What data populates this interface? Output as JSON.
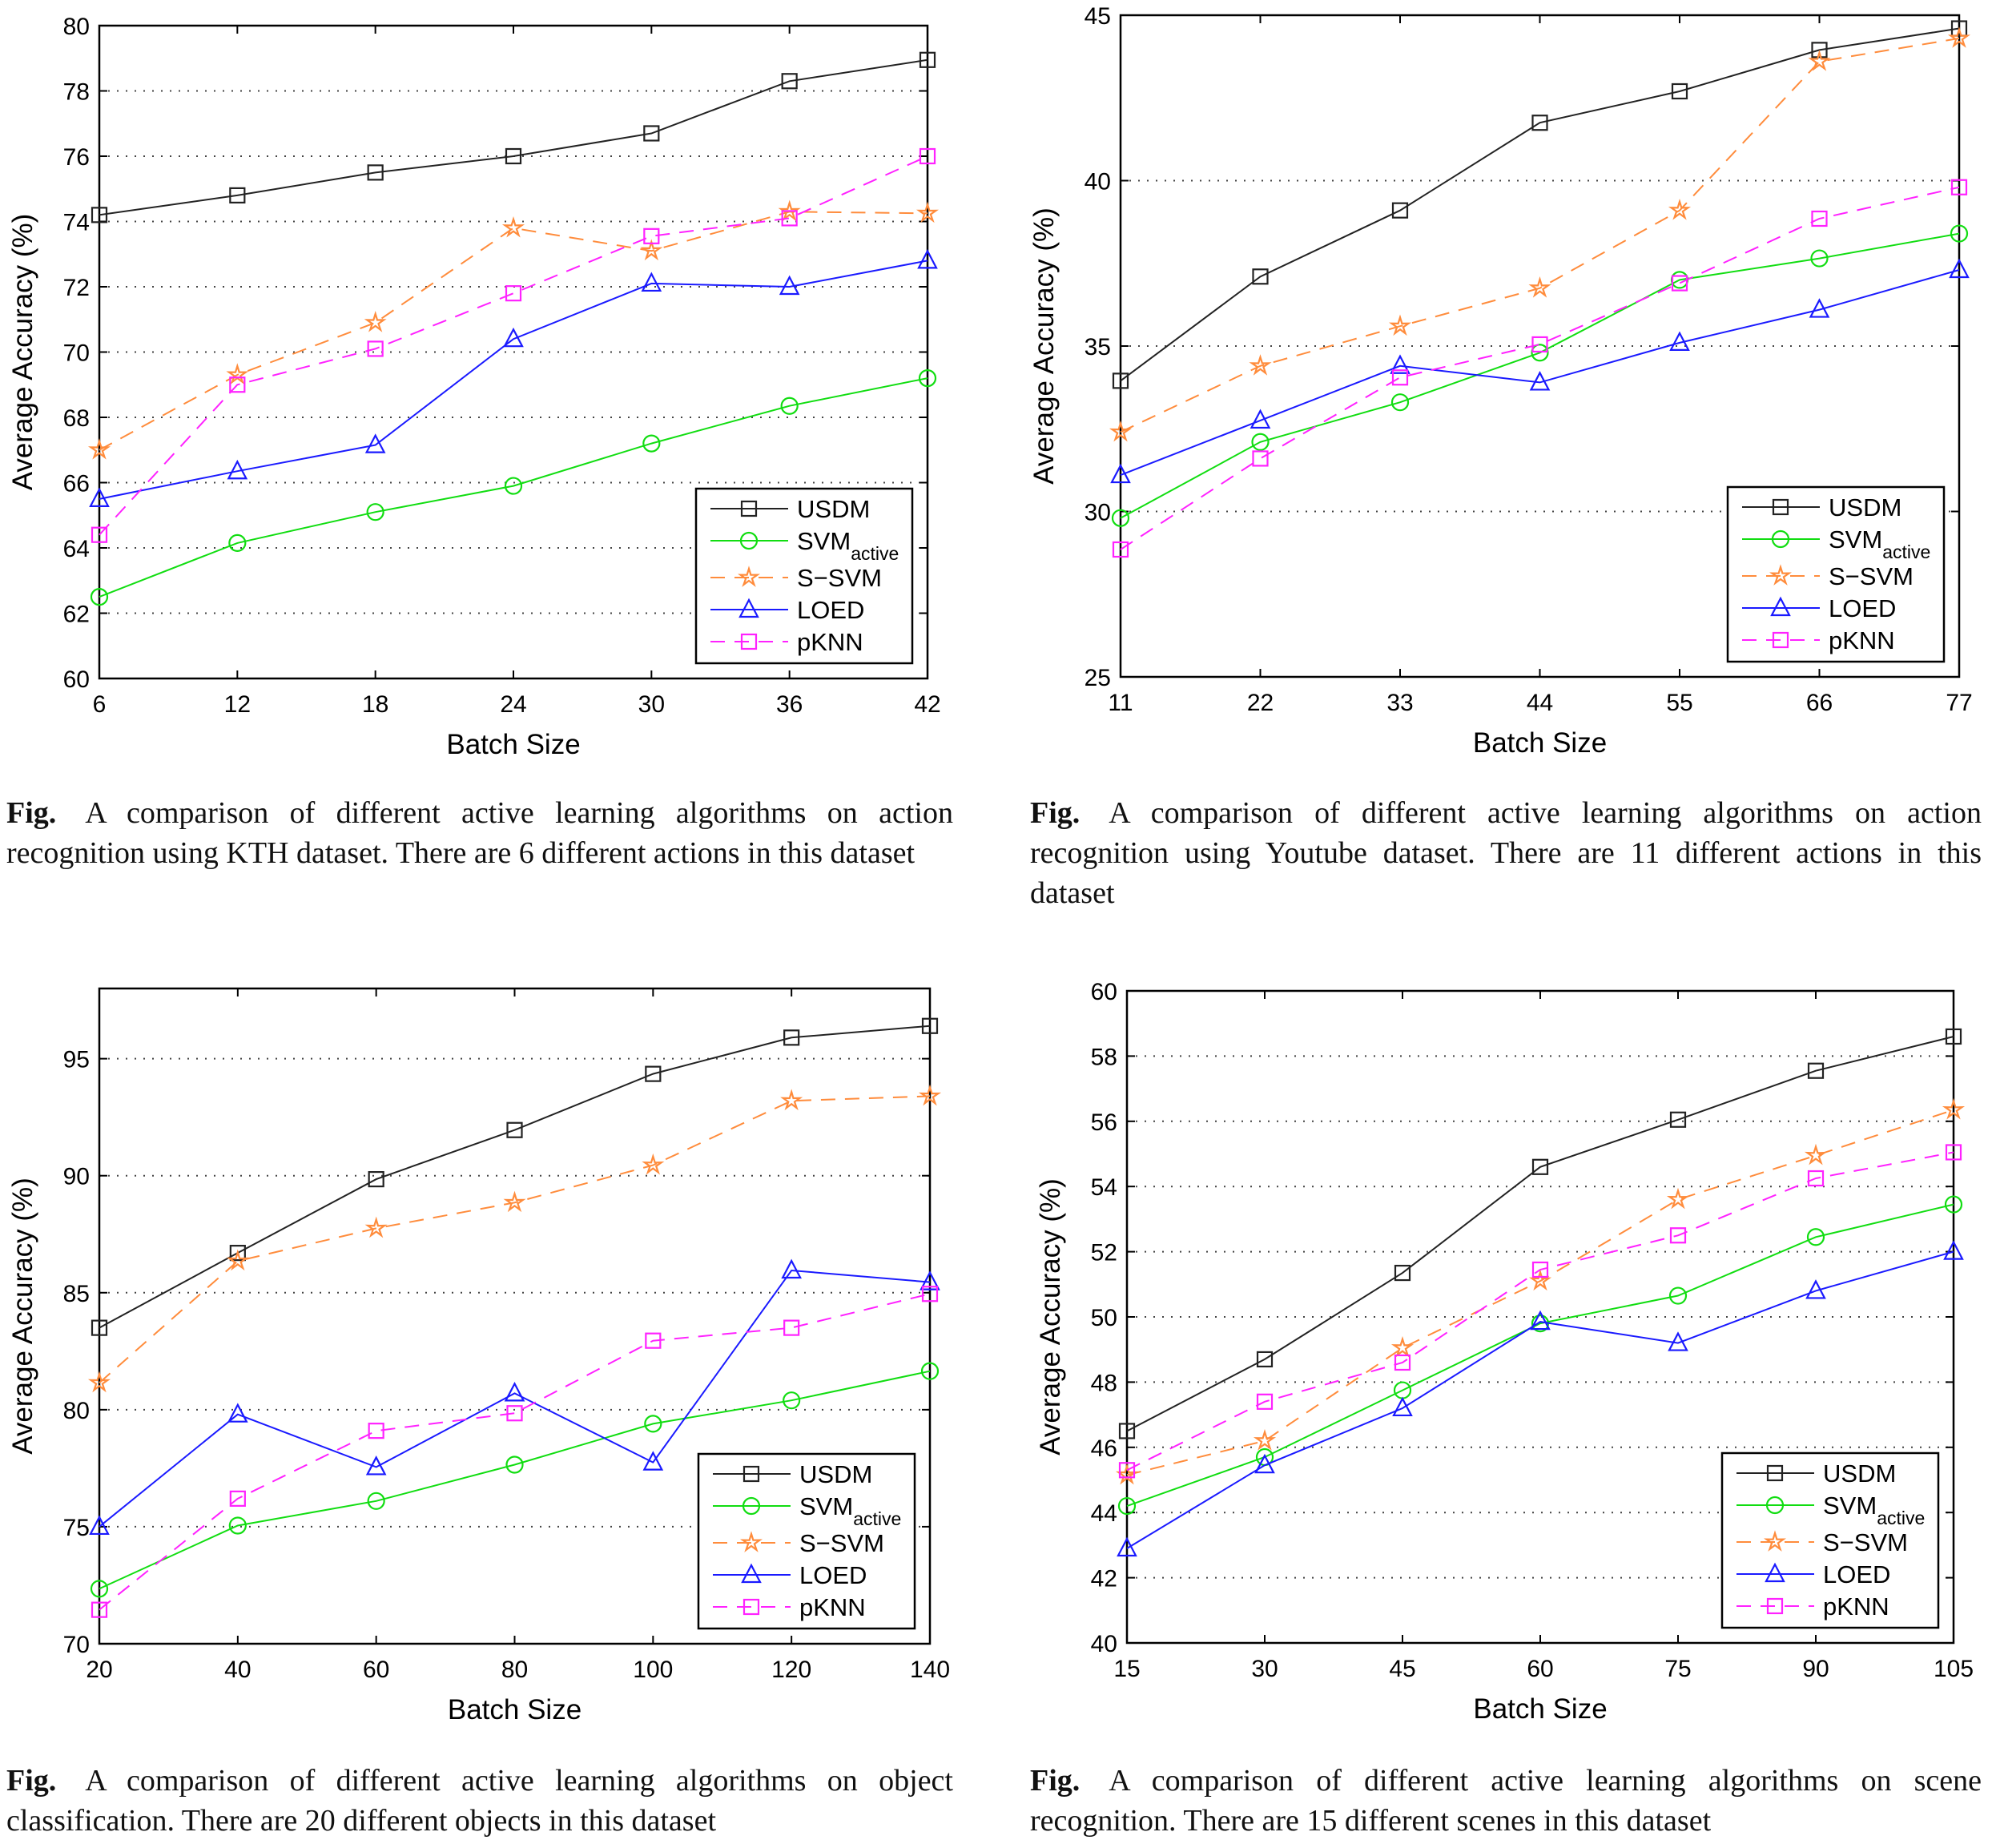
{
  "series_style": {
    "USDM": {
      "color": "#222222",
      "dash": false,
      "marker": "square"
    },
    "SVM_active": {
      "color": "#11dd11",
      "dash": false,
      "marker": "circle"
    },
    "S-SVM": {
      "color": "#ff8c3c",
      "dash": true,
      "marker": "star"
    },
    "LOED": {
      "color": "#1a1aff",
      "dash": false,
      "marker": "triangle"
    },
    "pKNN": {
      "color": "#ff22ff",
      "dash": true,
      "marker": "square"
    }
  },
  "chart_data": [
    {
      "type": "line",
      "xlabel": "Batch Size",
      "ylabel": "Average Accuracy (%)",
      "x": [
        6,
        12,
        18,
        24,
        30,
        36,
        42
      ],
      "xlim": [
        6,
        42
      ],
      "ylim": [
        60,
        80
      ],
      "yticks": [
        60,
        62,
        64,
        66,
        68,
        70,
        72,
        74,
        76,
        78,
        80
      ],
      "grid": "y-dotted",
      "legend": "bottom-right",
      "series": [
        {
          "name": "USDM",
          "key": "USDM",
          "values": [
            74.2,
            74.8,
            75.5,
            76.0,
            76.7,
            78.3,
            78.95
          ]
        },
        {
          "name": "SVM",
          "sub": "active",
          "key": "SVM_active",
          "values": [
            62.5,
            64.15,
            65.1,
            65.9,
            67.2,
            68.35,
            69.2
          ]
        },
        {
          "name": "S−SVM",
          "key": "S-SVM",
          "values": [
            67.0,
            69.3,
            70.9,
            73.8,
            73.1,
            74.3,
            74.25
          ]
        },
        {
          "name": "LOED",
          "key": "LOED",
          "values": [
            65.5,
            66.35,
            67.15,
            70.4,
            72.1,
            72.0,
            72.8
          ]
        },
        {
          "name": "pKNN",
          "key": "pKNN",
          "values": [
            64.4,
            69.0,
            70.1,
            71.8,
            73.55,
            74.1,
            76.0
          ]
        }
      ]
    },
    {
      "type": "line",
      "xlabel": "Batch Size",
      "ylabel": "Average Accuracy (%)",
      "x": [
        11,
        22,
        33,
        44,
        55,
        66,
        77
      ],
      "xlim": [
        11,
        77
      ],
      "ylim": [
        25,
        45
      ],
      "yticks": [
        25,
        30,
        35,
        40,
        45
      ],
      "grid": "y-dotted",
      "legend": "bottom-right",
      "series": [
        {
          "name": "USDM",
          "key": "USDM",
          "values": [
            33.95,
            37.1,
            39.1,
            41.75,
            42.7,
            43.95,
            44.6
          ]
        },
        {
          "name": "SVM",
          "sub": "active",
          "key": "SVM_active",
          "values": [
            29.8,
            32.1,
            33.3,
            34.8,
            37.0,
            37.65,
            38.4
          ]
        },
        {
          "name": "S−SVM",
          "key": "S-SVM",
          "values": [
            32.4,
            34.4,
            35.6,
            36.75,
            39.1,
            43.6,
            44.3
          ]
        },
        {
          "name": "LOED",
          "key": "LOED",
          "values": [
            31.1,
            32.75,
            34.4,
            33.9,
            35.1,
            36.1,
            37.3
          ]
        },
        {
          "name": "pKNN",
          "key": "pKNN",
          "values": [
            28.85,
            31.6,
            34.05,
            35.05,
            36.9,
            38.85,
            39.8
          ]
        }
      ]
    },
    {
      "type": "line",
      "xlabel": "Batch Size",
      "ylabel": "Average Accuracy (%)",
      "x": [
        20,
        40,
        60,
        80,
        100,
        120,
        140
      ],
      "xlim": [
        20,
        140
      ],
      "ylim": [
        70,
        98
      ],
      "yticks": [
        70,
        75,
        80,
        85,
        90,
        95
      ],
      "grid": "y-dotted",
      "legend": "bottom-right",
      "series": [
        {
          "name": "USDM",
          "key": "USDM",
          "values": [
            83.5,
            86.7,
            89.85,
            91.95,
            94.35,
            95.9,
            96.4
          ]
        },
        {
          "name": "SVM",
          "sub": "active",
          "key": "SVM_active",
          "values": [
            72.35,
            75.05,
            76.1,
            77.65,
            79.4,
            80.4,
            81.65
          ]
        },
        {
          "name": "S−SVM",
          "key": "S-SVM",
          "values": [
            81.15,
            86.35,
            87.75,
            88.85,
            90.45,
            93.2,
            93.4
          ]
        },
        {
          "name": "LOED",
          "key": "LOED",
          "values": [
            75.0,
            79.8,
            77.55,
            80.7,
            77.75,
            85.95,
            85.45
          ]
        },
        {
          "name": "pKNN",
          "key": "pKNN",
          "values": [
            71.45,
            76.2,
            79.1,
            79.85,
            82.95,
            83.5,
            84.95
          ]
        }
      ]
    },
    {
      "type": "line",
      "xlabel": "Batch Size",
      "ylabel": "Average Accuracy (%)",
      "x": [
        15,
        30,
        45,
        60,
        75,
        90,
        105
      ],
      "xlim": [
        15,
        105
      ],
      "ylim": [
        40,
        60
      ],
      "yticks": [
        40,
        42,
        44,
        46,
        48,
        50,
        52,
        54,
        56,
        58,
        60
      ],
      "grid": "y-dotted",
      "legend": "bottom-right",
      "series": [
        {
          "name": "USDM",
          "key": "USDM",
          "values": [
            46.5,
            48.7,
            51.35,
            54.6,
            56.05,
            57.55,
            58.6
          ]
        },
        {
          "name": "SVM",
          "sub": "active",
          "key": "SVM_active",
          "values": [
            44.2,
            45.7,
            47.75,
            49.8,
            50.65,
            52.45,
            53.45
          ]
        },
        {
          "name": "S−SVM",
          "key": "S-SVM",
          "values": [
            45.15,
            46.2,
            49.05,
            51.1,
            53.6,
            54.95,
            56.35
          ]
        },
        {
          "name": "LOED",
          "key": "LOED",
          "values": [
            42.9,
            45.45,
            47.2,
            49.85,
            49.2,
            50.8,
            52.0
          ]
        },
        {
          "name": "pKNN",
          "key": "pKNN",
          "values": [
            45.3,
            47.4,
            48.6,
            51.45,
            52.5,
            54.25,
            55.05
          ]
        }
      ]
    }
  ],
  "captions": [
    {
      "label": "Fig.",
      "text": "A comparison of different active learning algorithms on action recognition using KTH dataset. There are 6 different actions in this dataset"
    },
    {
      "label": "Fig.",
      "text": "A comparison of different active learning algorithms on action recognition using Youtube dataset. There are 11 different actions in this dataset"
    },
    {
      "label": "Fig.",
      "text": "A comparison of different active learning algorithms on object classification. There are 20 different objects in this dataset"
    },
    {
      "label": "Fig.",
      "text": "A comparison of different active learning algorithms on scene recognition. There are 15 different scenes in this dataset"
    }
  ]
}
